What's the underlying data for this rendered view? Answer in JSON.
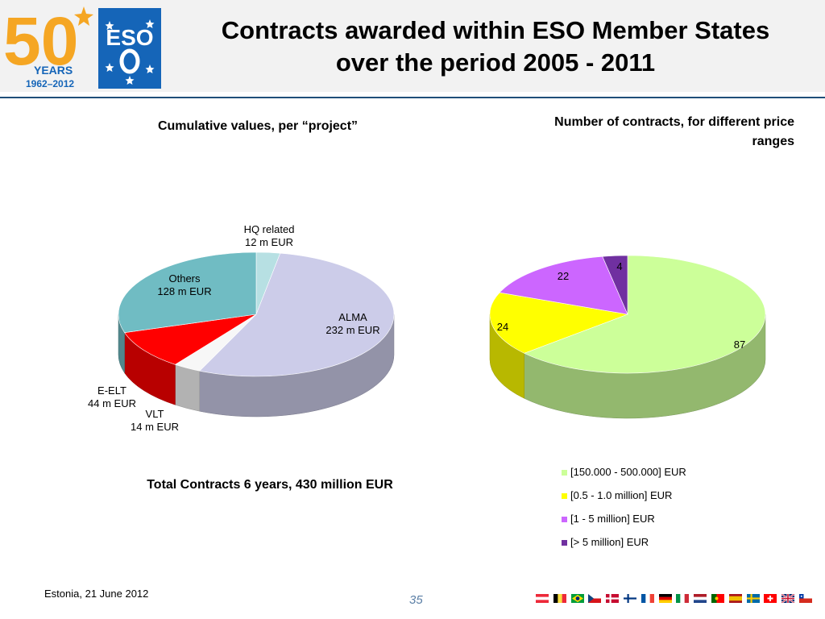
{
  "header": {
    "title_line1": "Contracts awarded within ESO Member States",
    "title_line2": "over the period 2005 - 2011",
    "anniversary_logo": {
      "number": "50",
      "years_label": "YEARS",
      "range": "1962–2012"
    },
    "eso_logo_text": "ESO"
  },
  "left_panel": {
    "subtitle": "Cumulative values, per “project”",
    "total_label": "Total Contracts 6 years, 430 million EUR"
  },
  "right_panel": {
    "subtitle_line1": "Number of contracts, for different price",
    "subtitle_line2": "ranges"
  },
  "footer": {
    "location_date": "Estonia, 21 June  2012",
    "page_number": "35"
  },
  "chart_data": [
    {
      "type": "pie",
      "title": "Cumulative values, per “project”",
      "unit": "m EUR",
      "slices": [
        {
          "name": "HQ related",
          "value": 12,
          "value_label": "12 m EUR",
          "color": "#b7e0e3"
        },
        {
          "name": "ALMA",
          "value": 232,
          "value_label": "232 m EUR",
          "color": "#cccce9"
        },
        {
          "name": "VLT",
          "value": 14,
          "value_label": "14 m EUR",
          "color": "#f7f7f7"
        },
        {
          "name": "E-ELT",
          "value": 44,
          "value_label": "44 m EUR",
          "color": "#ff0000"
        },
        {
          "name": "Others",
          "value": 128,
          "value_label": "128 m EUR",
          "color": "#70bcc3"
        }
      ]
    },
    {
      "type": "pie",
      "title": "Number of contracts, for different price ranges",
      "slices": [
        {
          "name": "[150.000 - 500.000] EUR",
          "value": 87,
          "value_label": "87",
          "color": "#ccff99"
        },
        {
          "name": "[0.5 - 1.0 million] EUR",
          "value": 24,
          "value_label": "24",
          "color": "#ffff00"
        },
        {
          "name": "[1 - 5 million] EUR",
          "value": 22,
          "value_label": "22",
          "color": "#cc66ff"
        },
        {
          "name": "[> 5 million] EUR",
          "value": 4,
          "value_label": "4",
          "color": "#7030a0"
        }
      ],
      "legend_position": "bottom"
    }
  ],
  "flags": [
    "austria",
    "belgium",
    "brazil",
    "czech-republic",
    "denmark",
    "finland",
    "france",
    "germany",
    "italy",
    "netherlands",
    "portugal",
    "spain",
    "sweden",
    "switzerland",
    "united-kingdom",
    "chile"
  ]
}
